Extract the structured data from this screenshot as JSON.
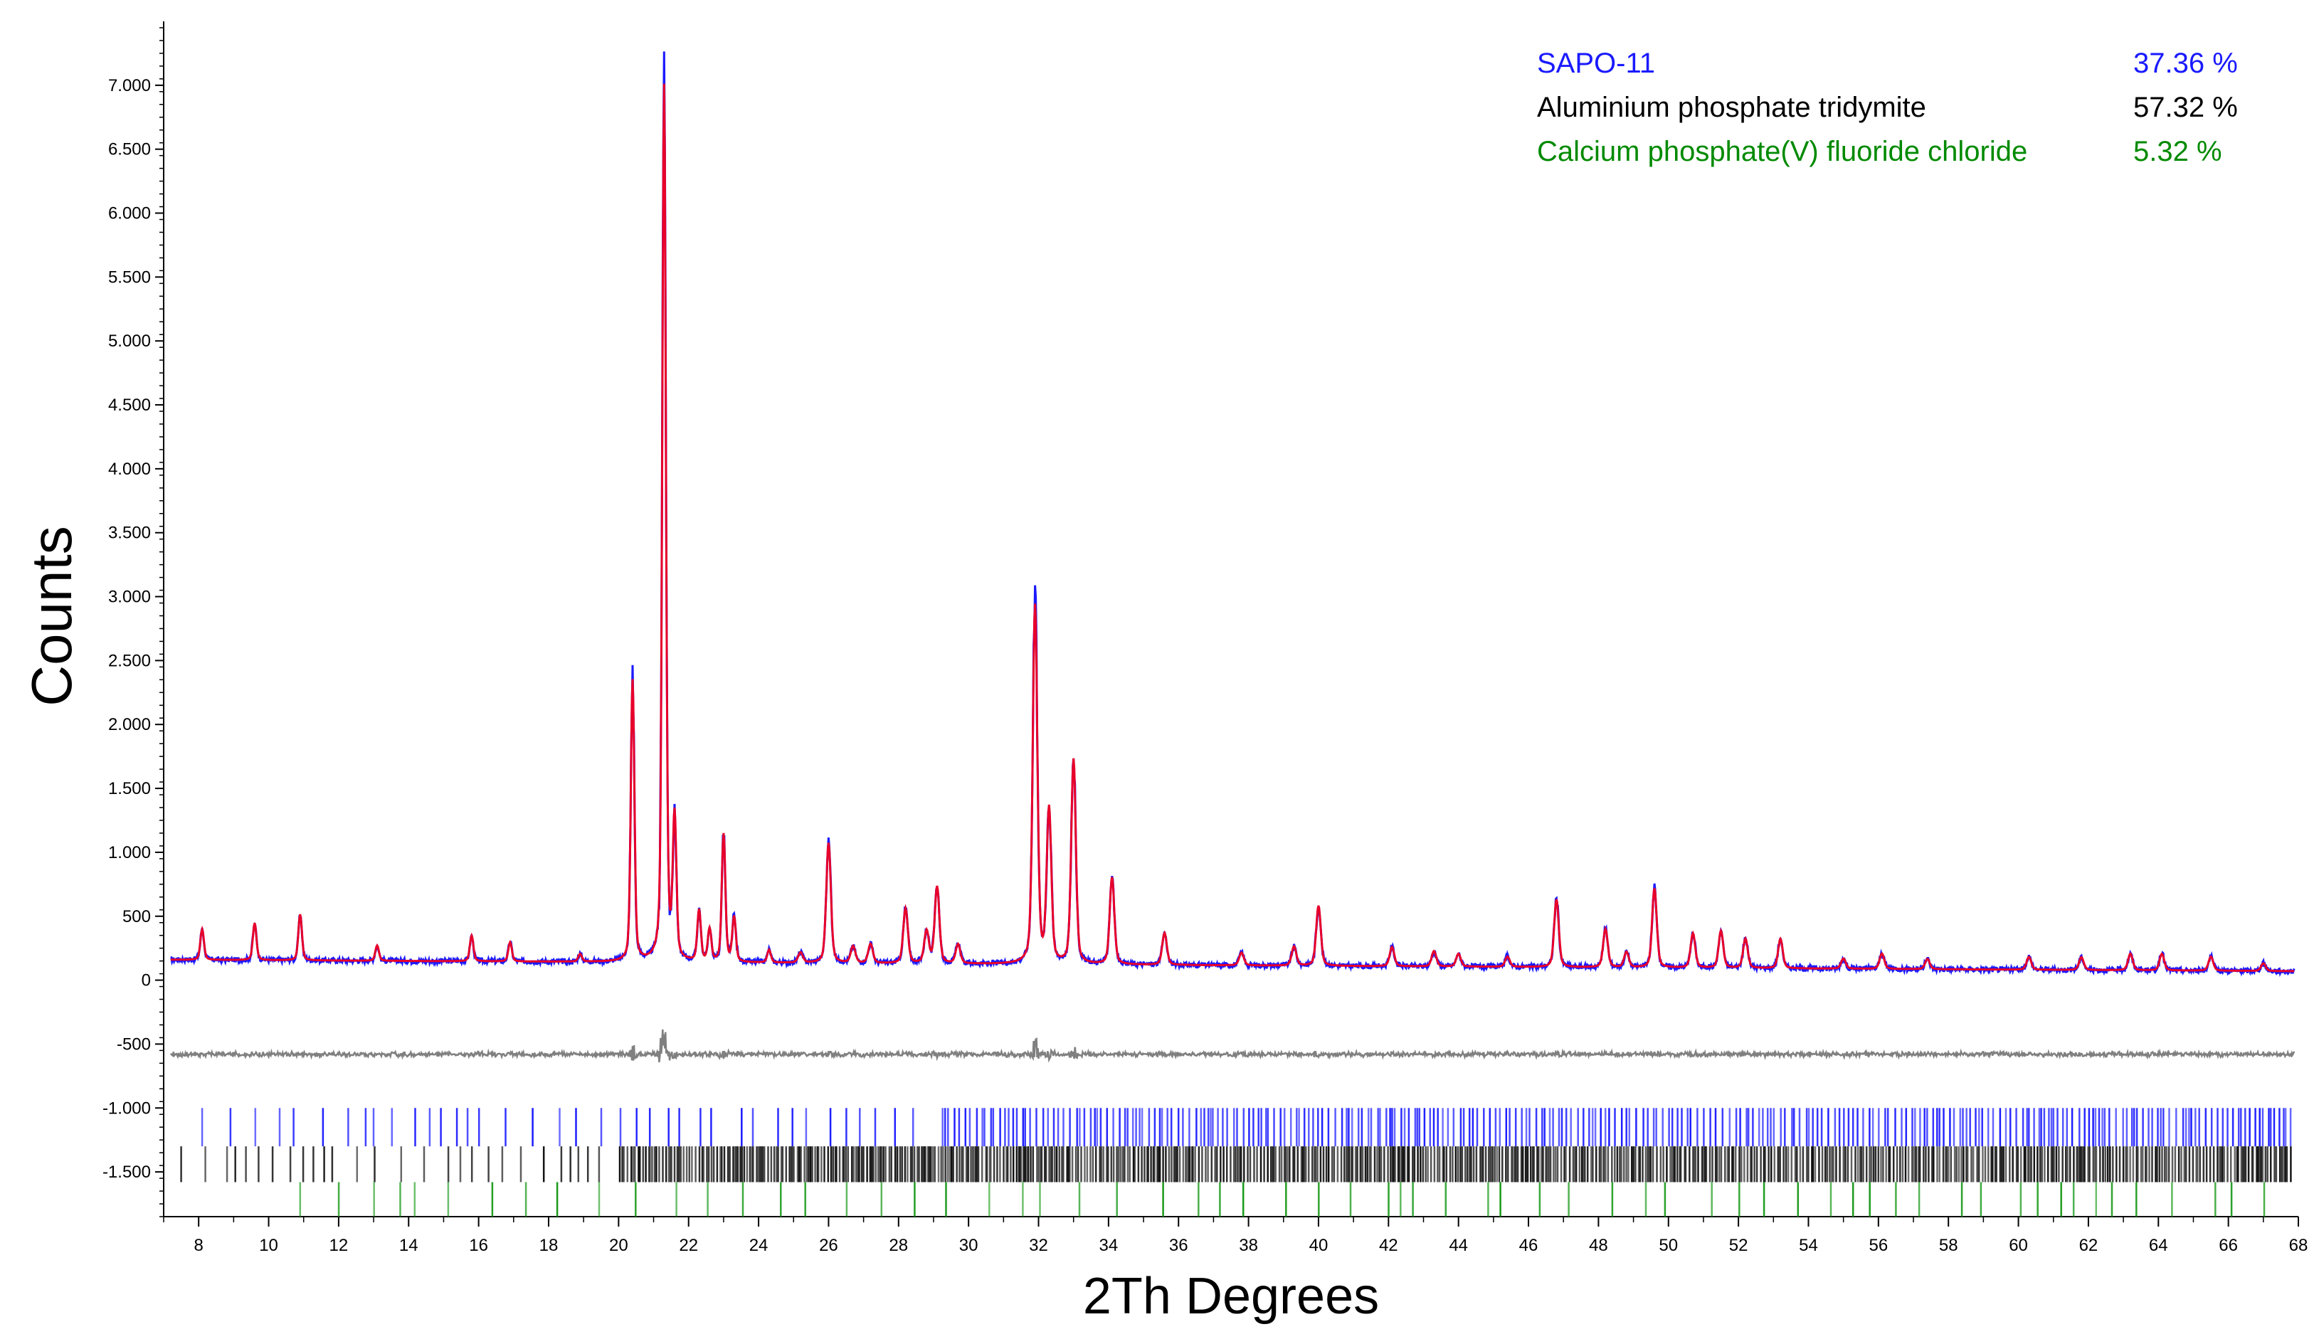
{
  "chart_data": {
    "type": "line",
    "title": "",
    "xlabel": "2Th Degrees",
    "ylabel": "Counts",
    "xlim": [
      7,
      68
    ],
    "ylim": [
      -1850,
      7500
    ],
    "x_ticks": [
      8,
      10,
      12,
      14,
      16,
      18,
      20,
      22,
      24,
      26,
      28,
      30,
      32,
      34,
      36,
      38,
      40,
      42,
      44,
      46,
      48,
      50,
      52,
      54,
      56,
      58,
      60,
      62,
      64,
      66,
      68
    ],
    "y_ticks": [
      {
        "value": 7000,
        "label": "7.000"
      },
      {
        "value": 6500,
        "label": "6.500"
      },
      {
        "value": 6000,
        "label": "6.000"
      },
      {
        "value": 5500,
        "label": "5.500"
      },
      {
        "value": 5000,
        "label": "5.000"
      },
      {
        "value": 4500,
        "label": "4.500"
      },
      {
        "value": 4000,
        "label": "4.000"
      },
      {
        "value": 3500,
        "label": "3.500"
      },
      {
        "value": 3000,
        "label": "3.000"
      },
      {
        "value": 2500,
        "label": "2.500"
      },
      {
        "value": 2000,
        "label": "2.000"
      },
      {
        "value": 1500,
        "label": "1.500"
      },
      {
        "value": 1000,
        "label": "1.000"
      },
      {
        "value": 500,
        "label": "500"
      },
      {
        "value": 0,
        "label": "0"
      },
      {
        "value": -500,
        "label": "-500"
      },
      {
        "value": -1000,
        "label": "-1.000"
      },
      {
        "value": -1500,
        "label": "-1.500"
      }
    ],
    "grid": false,
    "background": {
      "start": 160,
      "end": 70
    },
    "peaks": [
      [
        8.1,
        240
      ],
      [
        9.6,
        290
      ],
      [
        10.9,
        360
      ],
      [
        13.1,
        120
      ],
      [
        15.8,
        200
      ],
      [
        16.9,
        150
      ],
      [
        18.9,
        60
      ],
      [
        20.4,
        2200
      ],
      [
        21.3,
        6850
      ],
      [
        21.6,
        1100
      ],
      [
        22.3,
        400
      ],
      [
        22.6,
        250
      ],
      [
        23.0,
        1000
      ],
      [
        23.3,
        350
      ],
      [
        24.3,
        100
      ],
      [
        25.2,
        80
      ],
      [
        26.0,
        940
      ],
      [
        26.7,
        130
      ],
      [
        27.2,
        150
      ],
      [
        28.2,
        430
      ],
      [
        28.8,
        250
      ],
      [
        29.1,
        600
      ],
      [
        29.7,
        150
      ],
      [
        31.9,
        2800
      ],
      [
        32.3,
        1200
      ],
      [
        33.0,
        1600
      ],
      [
        34.1,
        680
      ],
      [
        35.6,
        250
      ],
      [
        37.8,
        100
      ],
      [
        39.3,
        150
      ],
      [
        40.0,
        470
      ],
      [
        42.1,
        150
      ],
      [
        43.3,
        120
      ],
      [
        44.0,
        100
      ],
      [
        45.4,
        80
      ],
      [
        46.8,
        530
      ],
      [
        48.2,
        300
      ],
      [
        48.8,
        120
      ],
      [
        49.6,
        620
      ],
      [
        50.7,
        270
      ],
      [
        51.5,
        290
      ],
      [
        52.2,
        230
      ],
      [
        53.2,
        230
      ],
      [
        55.0,
        80
      ],
      [
        56.1,
        120
      ],
      [
        57.4,
        80
      ],
      [
        60.3,
        100
      ],
      [
        61.8,
        100
      ],
      [
        63.2,
        130
      ],
      [
        64.1,
        130
      ],
      [
        65.5,
        110
      ],
      [
        67.0,
        60
      ]
    ],
    "series": [
      {
        "name": "Observed",
        "color": "#1a1aff"
      },
      {
        "name": "Calculated",
        "color": "#e8002a"
      },
      {
        "name": "Difference",
        "color": "#808080",
        "offset": -580
      }
    ],
    "reflection_markers": [
      {
        "phase": "SAPO-11",
        "color": "#1a1aff",
        "y_range": [
          -1000,
          -1300
        ],
        "start": 8.1,
        "dense_start": 28.5,
        "sparse_spacing": 0.55,
        "dense_spacing": 0.13
      },
      {
        "phase": "Aluminium phosphate tridymite",
        "color": "#111111",
        "y_range": [
          -1300,
          -1580
        ],
        "start": 7.5,
        "dense_start": 19.6,
        "sparse_spacing": 0.5,
        "dense_spacing": 0.07
      },
      {
        "phase": "Calcium phosphate(V) fluoride chloride",
        "color": "#1a9a1a",
        "y_range": [
          -1580,
          -1850
        ],
        "start": 10.9,
        "dense_start": 10.9,
        "sparse_spacing": 1.0,
        "dense_spacing": 0.85
      }
    ],
    "legend": {
      "position": "top-right",
      "entries": [
        {
          "name": "SAPO-11",
          "value": "37.36 %",
          "color": "#1a1aff"
        },
        {
          "name": "Aluminium phosphate tridymite",
          "value": "57.32 %",
          "color": "#000000"
        },
        {
          "name": "Calcium phosphate(V) fluoride chloride",
          "value": "5.32 %",
          "color": "#008a00"
        }
      ]
    }
  }
}
